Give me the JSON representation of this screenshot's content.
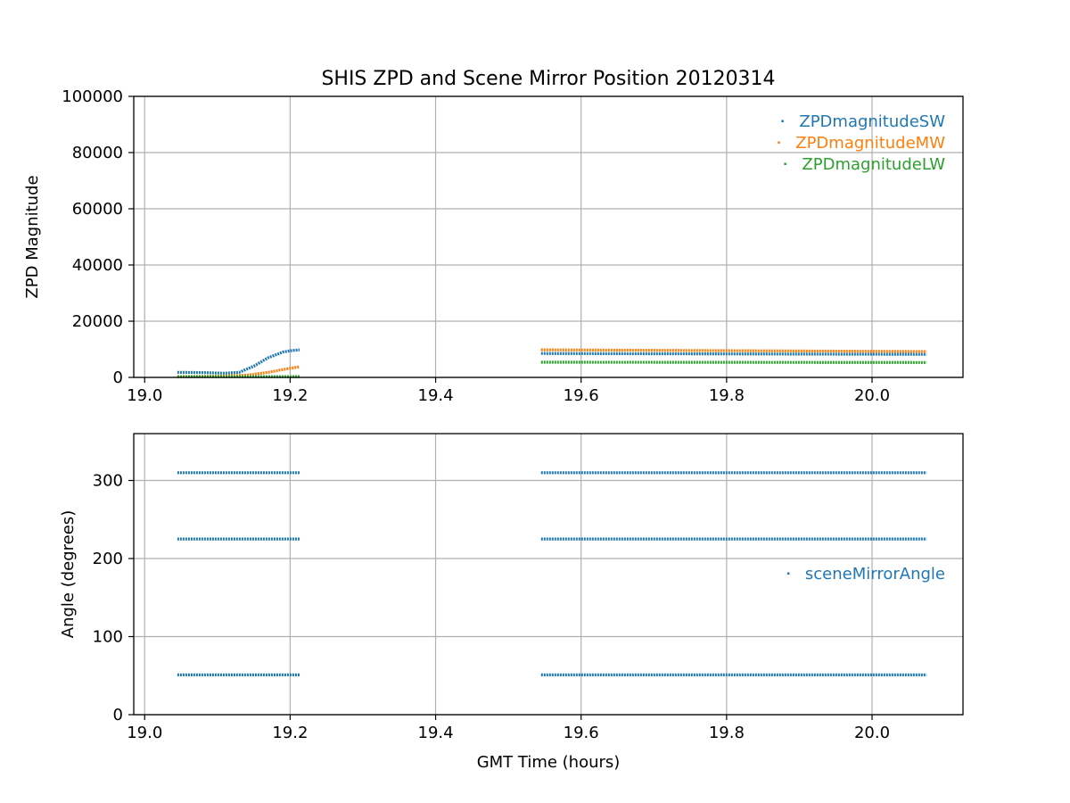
{
  "chart_data": [
    {
      "type": "scatter",
      "title": "SHIS ZPD and Scene Mirror Position 20120314",
      "xlabel": "",
      "ylabel": "ZPD Magnitude",
      "xlim": [
        18.985,
        20.125
      ],
      "ylim": [
        0,
        100000
      ],
      "x_ticks": [
        "19.0",
        "19.2",
        "19.4",
        "19.6",
        "19.8",
        "20.0"
      ],
      "y_ticks": [
        "0",
        "20000",
        "40000",
        "60000",
        "80000",
        "100000"
      ],
      "grid": true,
      "legend_position": "top-right",
      "series": [
        {
          "name": "ZPDmagnitudeSW",
          "color": "#1f77b4",
          "segments": [
            {
              "x": [
                19.045,
                19.08,
                19.11,
                19.13,
                19.15,
                19.17,
                19.19,
                19.2,
                19.213
              ],
              "y": [
                1800,
                1700,
                1500,
                1800,
                4000,
                7000,
                9000,
                9500,
                9800
              ]
            },
            {
              "x": [
                19.545,
                20.075
              ],
              "y": [
                8500,
                8200
              ]
            }
          ]
        },
        {
          "name": "ZPDmagnitudeMW",
          "color": "#ff7f0e",
          "segments": [
            {
              "x": [
                19.045,
                19.1,
                19.14,
                19.17,
                19.19,
                19.213
              ],
              "y": [
                300,
                400,
                800,
                1800,
                2800,
                3800
              ]
            },
            {
              "x": [
                19.545,
                20.075
              ],
              "y": [
                9800,
                9200
              ]
            }
          ]
        },
        {
          "name": "ZPDmagnitudeLW",
          "color": "#2ca02c",
          "segments": [
            {
              "x": [
                19.045,
                19.213
              ],
              "y": [
                300,
                300
              ]
            },
            {
              "x": [
                19.545,
                20.075
              ],
              "y": [
                5400,
                5300
              ]
            }
          ]
        }
      ]
    },
    {
      "type": "scatter",
      "title": "",
      "xlabel": "GMT Time (hours)",
      "ylabel": "Angle (degrees)",
      "xlim": [
        18.985,
        20.125
      ],
      "ylim": [
        0,
        360
      ],
      "x_ticks": [
        "19.0",
        "19.2",
        "19.4",
        "19.6",
        "19.8",
        "20.0"
      ],
      "y_ticks": [
        "0",
        "100",
        "200",
        "300"
      ],
      "grid": true,
      "legend_position": "center-right",
      "series": [
        {
          "name": "sceneMirrorAngle",
          "color": "#1f77b4",
          "segments": [
            {
              "x": [
                19.045,
                19.213
              ],
              "y": [
                310,
                310
              ]
            },
            {
              "x": [
                19.045,
                19.213
              ],
              "y": [
                225,
                225
              ]
            },
            {
              "x": [
                19.045,
                19.213
              ],
              "y": [
                51,
                51
              ]
            },
            {
              "x": [
                19.545,
                20.075
              ],
              "y": [
                310,
                310
              ]
            },
            {
              "x": [
                19.545,
                20.075
              ],
              "y": [
                225,
                225
              ]
            },
            {
              "x": [
                19.545,
                20.075
              ],
              "y": [
                51,
                51
              ]
            }
          ]
        }
      ]
    }
  ]
}
